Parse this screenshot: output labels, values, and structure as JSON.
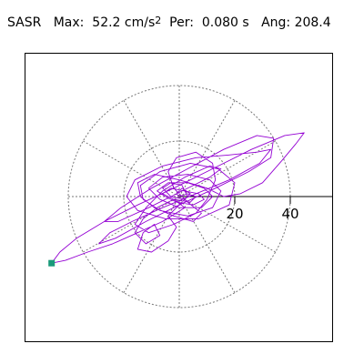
{
  "header": {
    "component": "SASR",
    "max_label": "Max:",
    "max_value": "52.2",
    "max_unit": "cm/s",
    "max_unit_exp": "2",
    "per_label": "Per:",
    "per_value": "0.080 s",
    "ang_label": "Ang:",
    "ang_value": "208.4"
  },
  "colors": {
    "trace": "#9400D3",
    "grid": "#777777",
    "marker": "#1a9a7a",
    "axis": "#000000"
  },
  "chart_data": {
    "type": "line",
    "title": "SASR Max: 52.2 cm/s2 Per: 0.080 s Ang: 208.4",
    "xlabel": "",
    "ylabel": "",
    "polar_grid": {
      "rings": [
        20,
        40
      ],
      "spoke_count": 12
    },
    "x_ticks": [
      20,
      40
    ],
    "xlim": [
      -56,
      56
    ],
    "ylim": [
      -52,
      52
    ],
    "max_point": {
      "x": -46.0,
      "y": -24.0
    },
    "series": [
      {
        "points": [
          [
            0,
            0
          ],
          [
            3,
            1
          ],
          [
            6,
            0
          ],
          [
            4,
            -2
          ],
          [
            -2,
            -1
          ],
          [
            -6,
            1
          ],
          [
            -3,
            3
          ],
          [
            2,
            2
          ],
          [
            7,
            1
          ],
          [
            9,
            -1
          ],
          [
            5,
            -3
          ],
          [
            -1,
            -2
          ],
          [
            -5,
            0
          ],
          [
            -8,
            2
          ],
          [
            -4,
            5
          ],
          [
            3,
            5
          ],
          [
            9,
            3
          ],
          [
            12,
            0
          ],
          [
            8,
            -4
          ],
          [
            0,
            -4
          ],
          [
            -7,
            -1
          ],
          [
            -11,
            3
          ],
          [
            -6,
            7
          ],
          [
            3,
            8
          ],
          [
            11,
            6
          ],
          [
            15,
            2
          ],
          [
            12,
            -4
          ],
          [
            3,
            -7
          ],
          [
            -7,
            -5
          ],
          [
            -13,
            -1
          ],
          [
            -14,
            4
          ],
          [
            -7,
            9
          ],
          [
            4,
            12
          ],
          [
            14,
            10
          ],
          [
            20,
            5
          ],
          [
            18,
            -3
          ],
          [
            7,
            -8
          ],
          [
            -5,
            -8
          ],
          [
            -15,
            -5
          ],
          [
            -19,
            0
          ],
          [
            -16,
            6
          ],
          [
            -6,
            11
          ],
          [
            6,
            14
          ],
          [
            18,
            15
          ],
          [
            28,
            16
          ],
          [
            33,
            17
          ],
          [
            29,
            12
          ],
          [
            18,
            6
          ],
          [
            6,
            1
          ],
          [
            -6,
            -4
          ],
          [
            -17,
            -9
          ],
          [
            -25,
            -13
          ],
          [
            -29,
            -17
          ],
          [
            -23,
            -15
          ],
          [
            -12,
            -9
          ],
          [
            0,
            -3
          ],
          [
            13,
            3
          ],
          [
            25,
            9
          ],
          [
            33,
            14
          ],
          [
            34,
            21
          ],
          [
            28,
            22
          ],
          [
            16,
            17
          ],
          [
            3,
            10
          ],
          [
            -10,
            3
          ],
          [
            -21,
            -4
          ],
          [
            -27,
            -9
          ],
          [
            -22,
            -9
          ],
          [
            -11,
            -4
          ],
          [
            1,
            2
          ],
          [
            11,
            7
          ],
          [
            15,
            10
          ],
          [
            11,
            11
          ],
          [
            2,
            7
          ],
          [
            -6,
            2
          ],
          [
            -12,
            -4
          ],
          [
            -16,
            -10
          ],
          [
            -11,
            -13
          ],
          [
            -2,
            -10
          ],
          [
            6,
            -6
          ],
          [
            10,
            -1
          ],
          [
            13,
            6
          ],
          [
            12,
            12
          ],
          [
            6,
            16
          ],
          [
            -1,
            14
          ],
          [
            -4,
            9
          ],
          [
            -2,
            3
          ],
          [
            3,
            -2
          ],
          [
            8,
            -6
          ],
          [
            5,
            -9
          ],
          [
            -2,
            -7
          ],
          [
            -9,
            -4
          ],
          [
            -14,
            0
          ],
          [
            -15,
            5
          ],
          [
            -9,
            8
          ],
          [
            0,
            6
          ],
          [
            10,
            3
          ],
          [
            16,
            0
          ],
          [
            22,
            1
          ],
          [
            30,
            5
          ],
          [
            37,
            13
          ],
          [
            42,
            19
          ],
          [
            45,
            23
          ],
          [
            38,
            22
          ],
          [
            26,
            17
          ],
          [
            12,
            10
          ],
          [
            -2,
            3
          ],
          [
            -15,
            -3
          ],
          [
            -27,
            -9
          ],
          [
            -37,
            -15
          ],
          [
            -43,
            -20
          ],
          [
            -46,
            -24
          ],
          [
            -41,
            -23
          ],
          [
            -33,
            -20
          ],
          [
            -24,
            -17
          ],
          [
            -15,
            -13
          ],
          [
            -6,
            -9
          ],
          [
            2,
            -4
          ],
          [
            -2,
            -1
          ],
          [
            -8,
            -4
          ],
          [
            -13,
            -8
          ],
          [
            -16,
            -13
          ],
          [
            -12,
            -17
          ],
          [
            -7,
            -14
          ],
          [
            -9,
            -10
          ],
          [
            -13,
            -13
          ],
          [
            -15,
            -19
          ],
          [
            -10,
            -20
          ],
          [
            -4,
            -16
          ],
          [
            -1,
            -11
          ],
          [
            -4,
            -7
          ],
          [
            -1,
            -4
          ],
          [
            3,
            0
          ],
          [
            1,
            4
          ],
          [
            -3,
            5
          ],
          [
            -6,
            3
          ],
          [
            -3,
            0
          ],
          [
            2,
            -1
          ],
          [
            4,
            1
          ],
          [
            1,
            3
          ],
          [
            -1,
            1
          ],
          [
            0,
            0
          ]
        ]
      }
    ]
  }
}
